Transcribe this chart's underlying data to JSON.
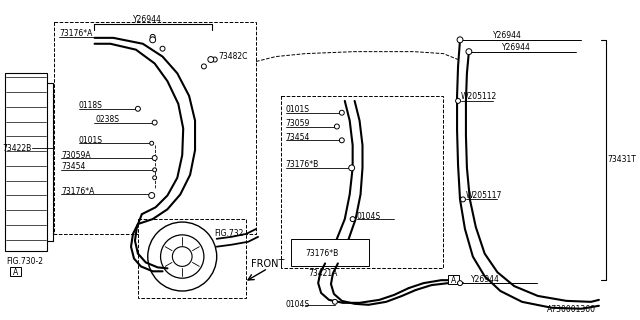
{
  "bg_color": "#ffffff",
  "line_color": "#000000",
  "part_number": "A730001360",
  "fs": 5.5,
  "labels": {
    "Y26944_top": "Y26944",
    "73176A_top": "73176*A",
    "73482C": "73482C",
    "73422B": "73422B",
    "0118S": "0118S",
    "0238S": "0238S",
    "0101S_left": "0101S",
    "73059A": "73059A",
    "73454_left": "73454",
    "73176A_bot": "73176*A",
    "FIG730_2": "FIG.730-2",
    "FIG732": "FIG.732",
    "FRONT": "FRONT",
    "0101S_right": "0101S",
    "73059_right": "73059",
    "73454_right": "73454",
    "73176B_right": "73176*B",
    "73176B_box": "73176*B",
    "73421A": "73421A",
    "0104S_mid": "0104S",
    "0104S_bot": "0104S",
    "Y26944_r1": "Y26944",
    "Y26944_r2": "Y26944",
    "W205112": "W205112",
    "W205117": "W205117",
    "73431T": "73431T",
    "Y26944_bot": "Y26944",
    "A_left": "A",
    "A_right": "A"
  }
}
